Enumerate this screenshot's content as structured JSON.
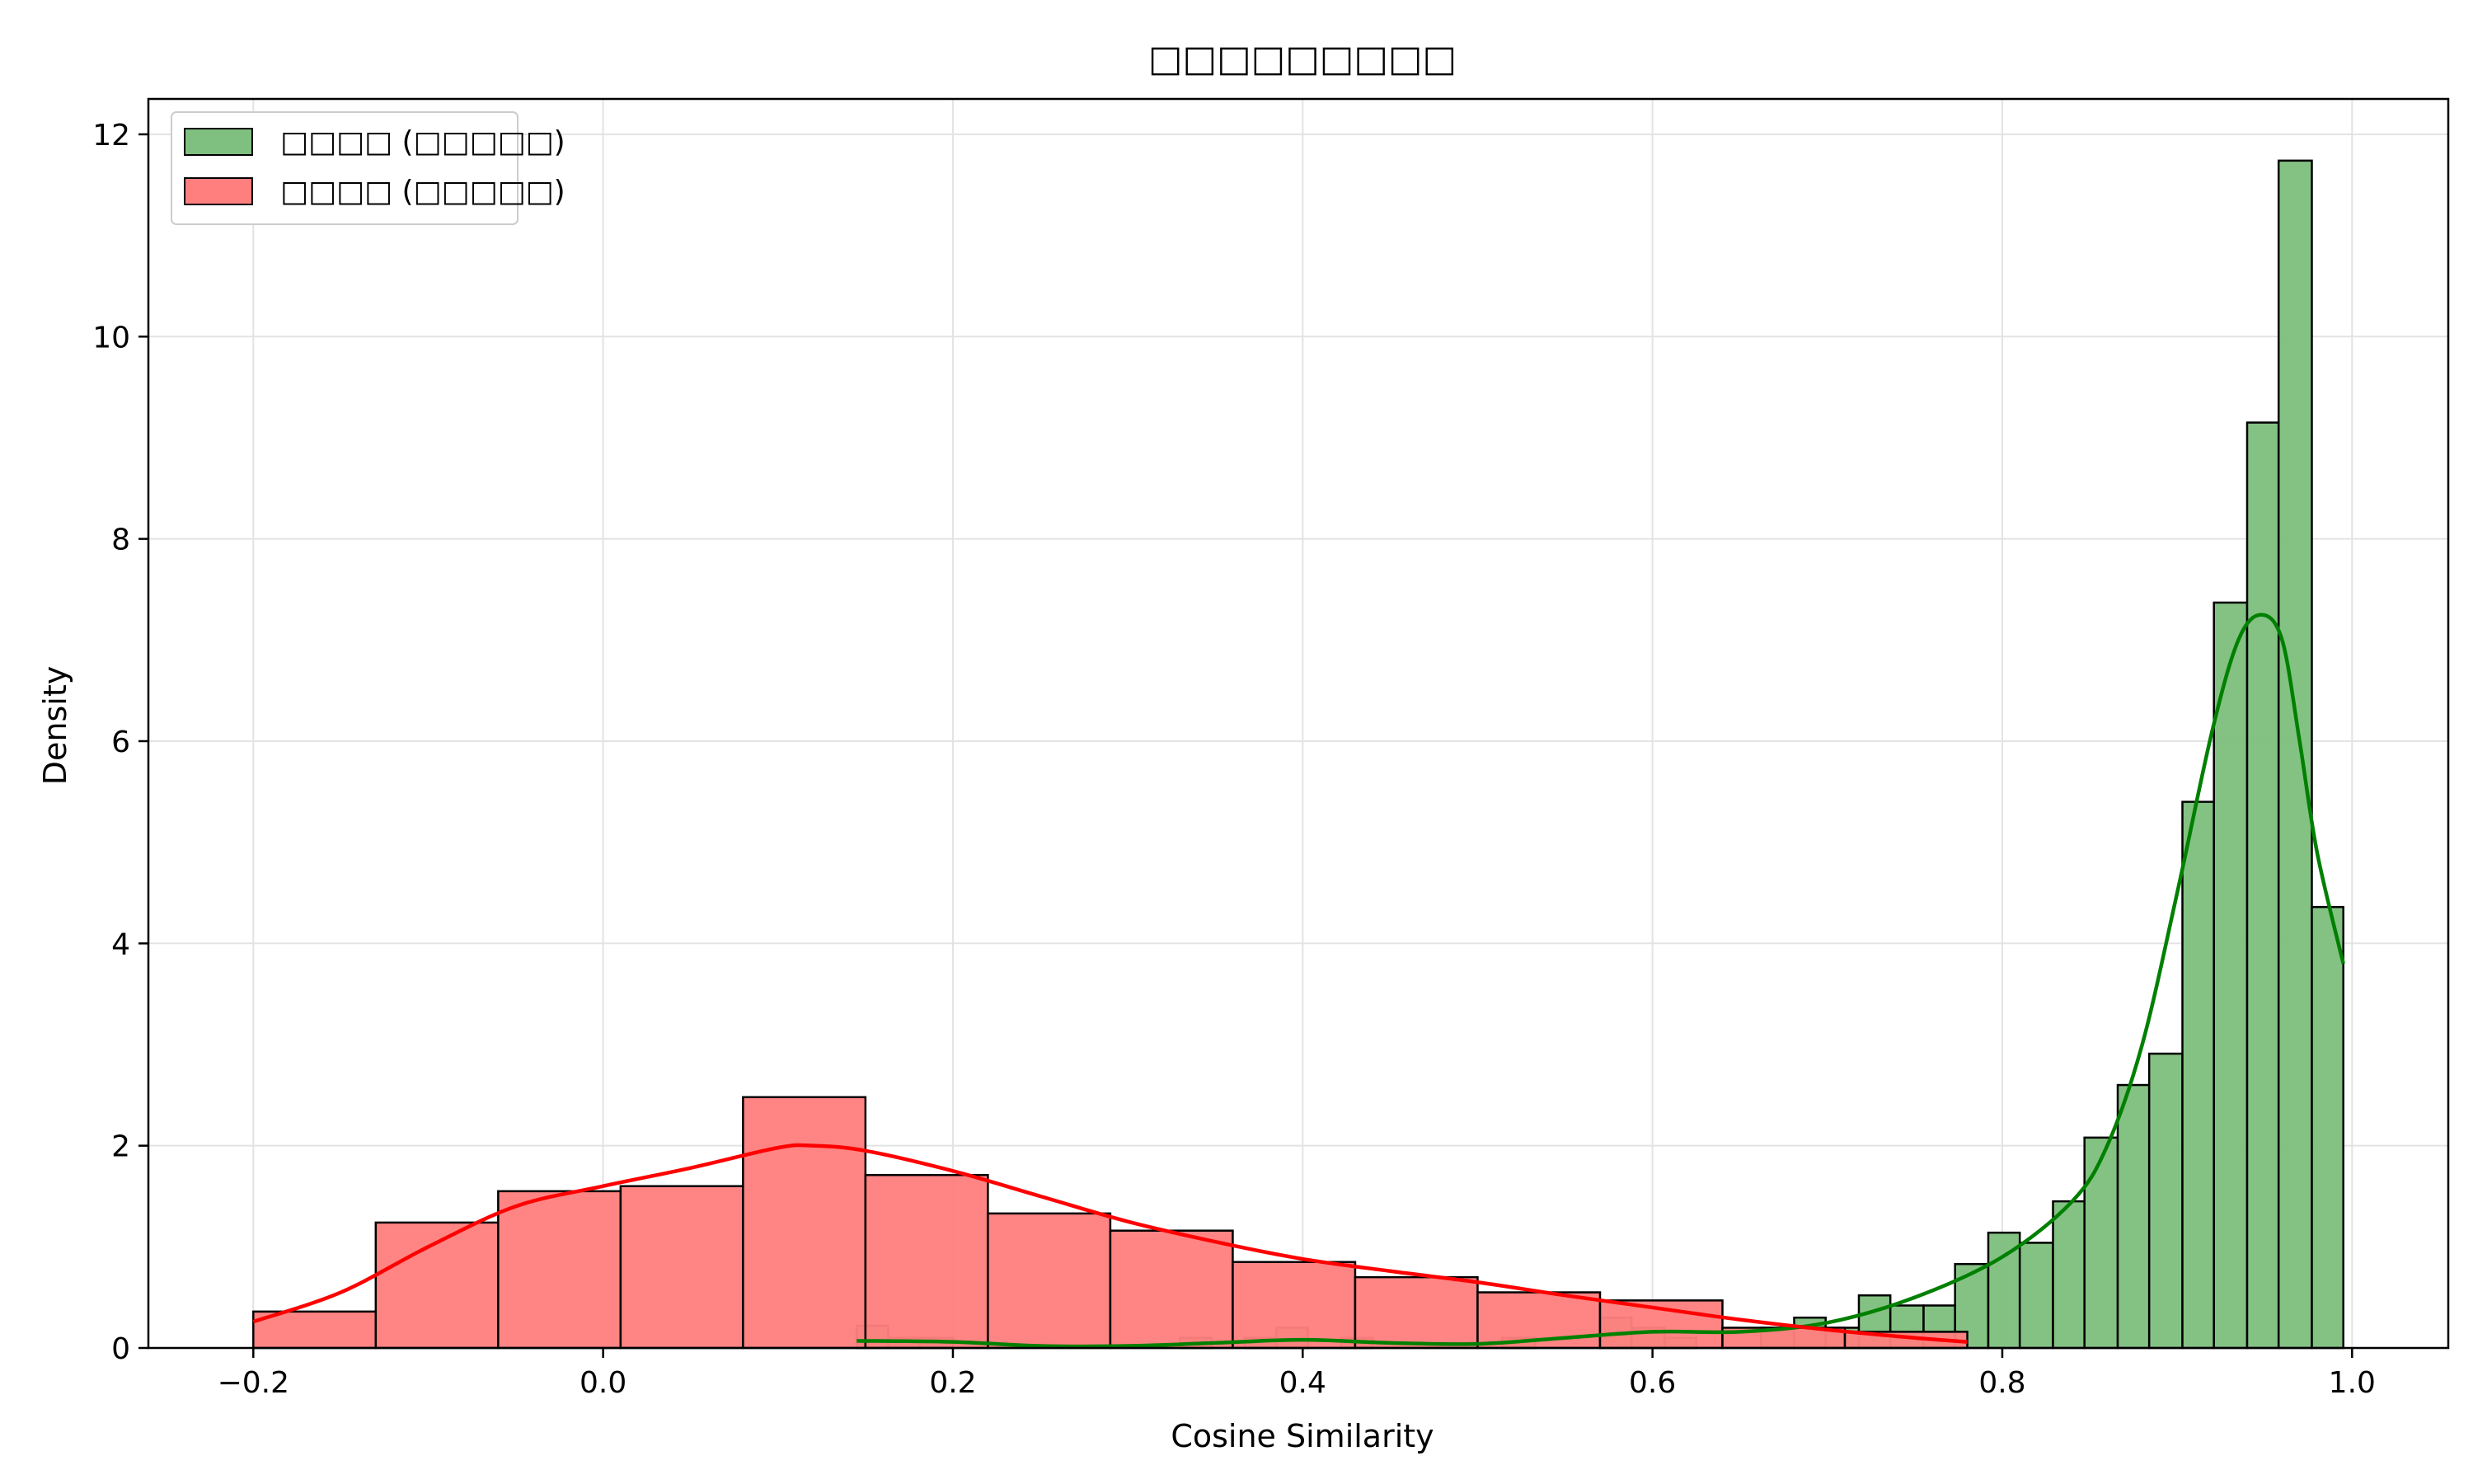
{
  "chart_data": {
    "type": "histogram",
    "title": "□□□□□□□□□",
    "xlabel": "Cosine Similarity",
    "ylabel": "Density",
    "xlim": [
      -0.26,
      1.055
    ],
    "ylim": [
      0,
      12.35
    ],
    "x_ticks": [
      -0.2,
      0.0,
      0.2,
      0.4,
      0.6,
      0.8,
      1.0
    ],
    "x_tick_labels": [
      "−0.2",
      "0.0",
      "0.2",
      "0.4",
      "0.6",
      "0.8",
      "1.0"
    ],
    "y_ticks": [
      0,
      2,
      4,
      6,
      8,
      10,
      12
    ],
    "y_tick_labels": [
      "0",
      "2",
      "4",
      "6",
      "8",
      "10",
      "12"
    ],
    "grid": true,
    "legend_position": "top-left",
    "series": [
      {
        "name": "□□□□ (□□□□□)",
        "color": "#008000",
        "fill": "#7fbf7f",
        "bins": [
          [
            0.145,
            0.163,
            0.22
          ],
          [
            0.163,
            0.181,
            0.1
          ],
          [
            0.181,
            0.2,
            0.1
          ],
          [
            0.33,
            0.348,
            0.1
          ],
          [
            0.367,
            0.385,
            0.1
          ],
          [
            0.385,
            0.403,
            0.2
          ],
          [
            0.422,
            0.44,
            0.1
          ],
          [
            0.514,
            0.533,
            0.1
          ],
          [
            0.57,
            0.588,
            0.3
          ],
          [
            0.588,
            0.607,
            0.2
          ],
          [
            0.607,
            0.625,
            0.1
          ],
          [
            0.662,
            0.681,
            0.2
          ],
          [
            0.681,
            0.699,
            0.3
          ],
          [
            0.699,
            0.718,
            0.2
          ],
          [
            0.718,
            0.736,
            0.52
          ],
          [
            0.736,
            0.755,
            0.42
          ],
          [
            0.755,
            0.773,
            0.42
          ],
          [
            0.773,
            0.792,
            0.83
          ],
          [
            0.792,
            0.81,
            1.14
          ],
          [
            0.81,
            0.829,
            1.04
          ],
          [
            0.829,
            0.847,
            1.45
          ],
          [
            0.847,
            0.866,
            2.08
          ],
          [
            0.866,
            0.884,
            2.6
          ],
          [
            0.884,
            0.903,
            2.91
          ],
          [
            0.903,
            0.921,
            5.4
          ],
          [
            0.921,
            0.94,
            7.37
          ],
          [
            0.94,
            0.958,
            9.15
          ],
          [
            0.958,
            0.977,
            11.74
          ],
          [
            0.977,
            0.995,
            4.36
          ]
        ],
        "kde": [
          [
            0.145,
            0.07
          ],
          [
            0.2,
            0.06
          ],
          [
            0.25,
            0.02
          ],
          [
            0.3,
            0.02
          ],
          [
            0.35,
            0.05
          ],
          [
            0.4,
            0.08
          ],
          [
            0.45,
            0.05
          ],
          [
            0.5,
            0.04
          ],
          [
            0.55,
            0.1
          ],
          [
            0.6,
            0.16
          ],
          [
            0.65,
            0.16
          ],
          [
            0.7,
            0.25
          ],
          [
            0.75,
            0.5
          ],
          [
            0.8,
            0.9
          ],
          [
            0.84,
            1.45
          ],
          [
            0.86,
            2.0
          ],
          [
            0.88,
            3.0
          ],
          [
            0.9,
            4.5
          ],
          [
            0.92,
            6.1
          ],
          [
            0.935,
            7.0
          ],
          [
            0.948,
            7.25
          ],
          [
            0.96,
            7.0
          ],
          [
            0.97,
            6.0
          ],
          [
            0.98,
            4.9
          ],
          [
            0.995,
            3.8
          ]
        ]
      },
      {
        "name": "□□□□ (□□□□□)",
        "color": "#ff0000",
        "fill": "#ff7f7f",
        "bins": [
          [
            -0.2,
            -0.13,
            0.36
          ],
          [
            -0.13,
            -0.06,
            1.24
          ],
          [
            -0.06,
            0.01,
            1.55
          ],
          [
            0.01,
            0.08,
            1.6
          ],
          [
            0.08,
            0.15,
            2.48
          ],
          [
            0.15,
            0.22,
            1.71
          ],
          [
            0.22,
            0.29,
            1.33
          ],
          [
            0.29,
            0.36,
            1.16
          ],
          [
            0.36,
            0.43,
            0.85
          ],
          [
            0.43,
            0.5,
            0.7
          ],
          [
            0.5,
            0.57,
            0.55
          ],
          [
            0.57,
            0.64,
            0.47
          ],
          [
            0.64,
            0.71,
            0.2
          ],
          [
            0.71,
            0.78,
            0.16
          ]
        ],
        "kde": [
          [
            -0.2,
            0.26
          ],
          [
            -0.15,
            0.55
          ],
          [
            -0.1,
            1.0
          ],
          [
            -0.05,
            1.4
          ],
          [
            0.0,
            1.6
          ],
          [
            0.05,
            1.78
          ],
          [
            0.1,
            1.98
          ],
          [
            0.12,
            2.0
          ],
          [
            0.15,
            1.95
          ],
          [
            0.2,
            1.75
          ],
          [
            0.25,
            1.5
          ],
          [
            0.3,
            1.25
          ],
          [
            0.35,
            1.05
          ],
          [
            0.4,
            0.88
          ],
          [
            0.45,
            0.76
          ],
          [
            0.5,
            0.65
          ],
          [
            0.55,
            0.52
          ],
          [
            0.6,
            0.4
          ],
          [
            0.65,
            0.28
          ],
          [
            0.7,
            0.18
          ],
          [
            0.75,
            0.1
          ],
          [
            0.78,
            0.06
          ]
        ]
      }
    ]
  }
}
